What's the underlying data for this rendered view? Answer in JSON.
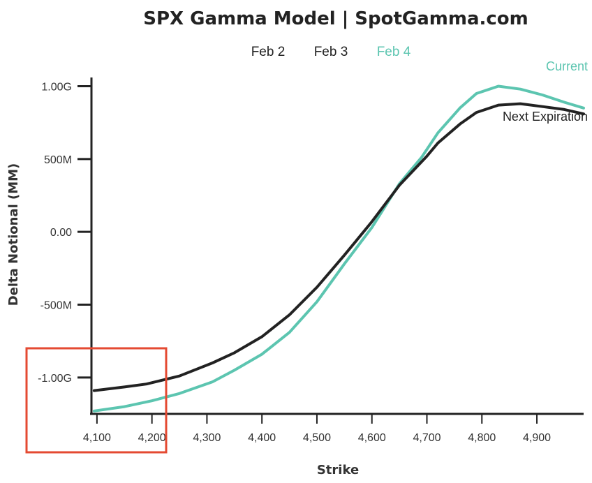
{
  "tabs": [
    {
      "label": "Feb 2",
      "color": "#222222"
    },
    {
      "label": "Feb 3",
      "color": "#222222"
    },
    {
      "label": "Feb 4",
      "color": "#5cc5b0"
    }
  ],
  "colors": {
    "current": "#5cc5b0",
    "next_expiration": "#222222",
    "axis": "#222222",
    "highlight_box": "#e44a32"
  },
  "chart_data": {
    "type": "line",
    "title": "SPX Gamma Model | SpotGamma.com",
    "xlabel": "Strike",
    "ylabel": "Delta Notional (MM)",
    "xlim": [
      4090,
      4985
    ],
    "ylim": [
      -1250000000,
      1060000000
    ],
    "x_ticks": [
      4100,
      4200,
      4300,
      4400,
      4500,
      4600,
      4700,
      4800,
      4900
    ],
    "x_tick_labels": [
      "4,100",
      "4,200",
      "4,300",
      "4,400",
      "4,500",
      "4,600",
      "4,700",
      "4,800",
      "4,900"
    ],
    "y_ticks": [
      1000000000,
      500000000,
      0,
      -500000000,
      -1000000000
    ],
    "y_tick_labels": [
      "1.00G",
      "500M",
      "0.00",
      "-500M",
      "-1.00G"
    ],
    "legend": "inline labels at top-right",
    "grid": false,
    "highlight_region": {
      "x": [
        4090,
        4220
      ],
      "y": [
        -1250000000,
        -790000000
      ]
    },
    "series": [
      {
        "name": "Current",
        "x": [
          4095,
          4150,
          4200,
          4250,
          4310,
          4350,
          4400,
          4450,
          4500,
          4550,
          4600,
          4650,
          4690,
          4720,
          4760,
          4790,
          4830,
          4870,
          4910,
          4950,
          4985
        ],
        "values": [
          -1230000000,
          -1200000000,
          -1160000000,
          -1110000000,
          -1030000000,
          -950000000,
          -840000000,
          -690000000,
          -480000000,
          -220000000,
          30000000,
          330000000,
          510000000,
          680000000,
          850000000,
          950000000,
          1000000000,
          980000000,
          940000000,
          890000000,
          850000000
        ]
      },
      {
        "name": "Next Expiration",
        "x": [
          4095,
          4150,
          4190,
          4250,
          4310,
          4350,
          4400,
          4450,
          4500,
          4550,
          4600,
          4650,
          4700,
          4720,
          4760,
          4790,
          4830,
          4870,
          4910,
          4950,
          4985
        ],
        "values": [
          -1090000000,
          -1065000000,
          -1045000000,
          -990000000,
          -900000000,
          -830000000,
          -720000000,
          -570000000,
          -380000000,
          -160000000,
          70000000,
          320000000,
          520000000,
          610000000,
          740000000,
          820000000,
          870000000,
          880000000,
          860000000,
          840000000,
          810000000
        ]
      }
    ]
  }
}
